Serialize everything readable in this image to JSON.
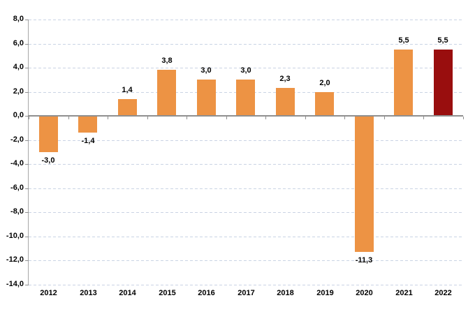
{
  "chart_data": {
    "type": "bar",
    "title": "",
    "xlabel": "",
    "ylabel": "",
    "categories": [
      "2012",
      "2013",
      "2014",
      "2015",
      "2016",
      "2017",
      "2018",
      "2019",
      "2020",
      "2021",
      "2022"
    ],
    "values": [
      -3.0,
      -1.4,
      1.4,
      3.8,
      3.0,
      3.0,
      2.3,
      2.0,
      -11.3,
      5.5,
      5.5
    ],
    "value_labels": [
      "-3,0",
      "-1,4",
      "1,4",
      "3,8",
      "3,0",
      "3,0",
      "2,3",
      "2,0",
      "-11,3",
      "5,5",
      "5,5"
    ],
    "ylim": [
      -14,
      8
    ],
    "ytick_step": 2,
    "ytick_labels": [
      "8,0",
      "6,0",
      "4,0",
      "2,0",
      "0,0",
      "-2,0",
      "-4,0",
      "-6,0",
      "-8,0",
      "-10,0",
      "-12,0",
      "-14,0"
    ],
    "grid": true,
    "legend": "none",
    "highlight_category": "2022",
    "colors": {
      "bar": "#ED9344",
      "highlight_bar": "#990E0E",
      "gridline": "#C9D3E4",
      "zero_axis": "#8F8F8F",
      "y_axis": "#A6A6A6",
      "label_text": "#000000"
    }
  }
}
